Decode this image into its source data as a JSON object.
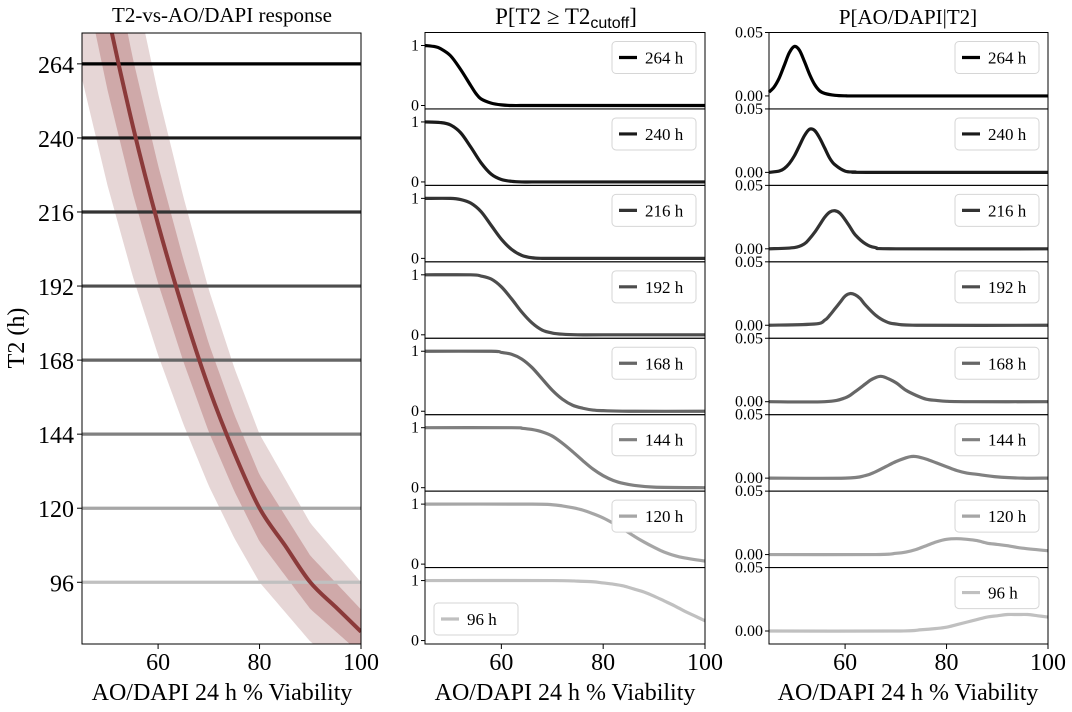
{
  "chart_data": [
    {
      "type": "line",
      "title": "T2-vs-AO/DAPI response",
      "xlabel": "AO/DAPI 24 h % Viability",
      "ylabel": "T2 (h)",
      "xlim": [
        45,
        100
      ],
      "ylim": [
        76,
        274
      ],
      "xticks": [
        "60",
        "80",
        "100"
      ],
      "yticks": [
        "96",
        "120",
        "144",
        "168",
        "192",
        "216",
        "240",
        "264"
      ],
      "curve": {
        "color": "#8b3a3a",
        "x": [
          45,
          50,
          55,
          60,
          65,
          70,
          75,
          80,
          85,
          90,
          95,
          100
        ],
        "y": [
          324,
          281,
          244,
          212,
          184,
          159,
          138,
          120,
          108,
          96,
          88,
          80
        ]
      },
      "band_inner_factor": 0.09,
      "band_outer_factor": 0.2,
      "hlines": [
        {
          "value": 264,
          "color": "#000000"
        },
        {
          "value": 240,
          "color": "#1a1a1a"
        },
        {
          "value": 216,
          "color": "#333333"
        },
        {
          "value": 192,
          "color": "#4d4d4d"
        },
        {
          "value": 168,
          "color": "#666666"
        },
        {
          "value": 144,
          "color": "#808080"
        },
        {
          "value": 120,
          "color": "#a6a6a6"
        },
        {
          "value": 96,
          "color": "#c0c0c0"
        }
      ],
      "grid": false
    },
    {
      "type": "line",
      "title_main": "P[T2 ≥ T2",
      "title_sub": "cutoff",
      "title_end": "]",
      "xlabel": "AO/DAPI 24 h % Viability",
      "xlim": [
        45,
        100
      ],
      "ylim": [
        0,
        1
      ],
      "xticks": [
        "60",
        "80",
        "100"
      ],
      "yticks": [
        "0",
        "1"
      ],
      "legend_position": "top-right",
      "series": [
        {
          "name": "264 h",
          "color": "#000000",
          "x": [
            45,
            47,
            48,
            50,
            52,
            54,
            55,
            56,
            58,
            60,
            62,
            65,
            70,
            100
          ],
          "y": [
            1.0,
            0.98,
            0.95,
            0.83,
            0.6,
            0.33,
            0.2,
            0.11,
            0.04,
            0.01,
            0.0,
            0.0,
            0.0,
            0.0
          ]
        },
        {
          "name": "240 h",
          "color": "#1a1a1a",
          "x": [
            45,
            48,
            50,
            52,
            54,
            56,
            58,
            60,
            62,
            64,
            66,
            70,
            100
          ],
          "y": [
            1.0,
            0.99,
            0.95,
            0.82,
            0.58,
            0.32,
            0.13,
            0.04,
            0.01,
            0.0,
            0.0,
            0.0,
            0.0
          ]
        },
        {
          "name": "216 h",
          "color": "#333333",
          "x": [
            45,
            50,
            52,
            54,
            56,
            58,
            60,
            62,
            64,
            66,
            68,
            70,
            75,
            100
          ],
          "y": [
            1.0,
            1.0,
            0.98,
            0.92,
            0.78,
            0.55,
            0.32,
            0.15,
            0.05,
            0.01,
            0.0,
            0.0,
            0.0,
            0.0
          ]
        },
        {
          "name": "192 h",
          "color": "#4d4d4d",
          "x": [
            45,
            54,
            56,
            58,
            60,
            62,
            64,
            66,
            68,
            70,
            72,
            75,
            80,
            100
          ],
          "y": [
            1.0,
            1.0,
            0.98,
            0.93,
            0.8,
            0.6,
            0.38,
            0.2,
            0.08,
            0.03,
            0.01,
            0.0,
            0.0,
            0.0
          ]
        },
        {
          "name": "168 h",
          "color": "#666666",
          "x": [
            45,
            58,
            60,
            62,
            64,
            66,
            68,
            70,
            72,
            74,
            76,
            78,
            80,
            85,
            100
          ],
          "y": [
            1.0,
            1.0,
            0.98,
            0.95,
            0.87,
            0.73,
            0.54,
            0.35,
            0.2,
            0.1,
            0.05,
            0.02,
            0.01,
            0.0,
            0.0
          ]
        },
        {
          "name": "144 h",
          "color": "#808080",
          "x": [
            45,
            62,
            64,
            66,
            68,
            70,
            72,
            74,
            76,
            78,
            80,
            82,
            84,
            86,
            90,
            100
          ],
          "y": [
            1.0,
            1.0,
            0.99,
            0.97,
            0.93,
            0.86,
            0.74,
            0.6,
            0.45,
            0.31,
            0.2,
            0.12,
            0.07,
            0.04,
            0.01,
            0.0
          ]
        },
        {
          "name": "120 h",
          "color": "#a6a6a6",
          "x": [
            45,
            66,
            70,
            72,
            74,
            76,
            78,
            80,
            82,
            84,
            86,
            88,
            90,
            92,
            95,
            100
          ],
          "y": [
            1.0,
            1.0,
            0.99,
            0.97,
            0.94,
            0.9,
            0.84,
            0.77,
            0.68,
            0.58,
            0.47,
            0.37,
            0.28,
            0.2,
            0.12,
            0.05
          ]
        },
        {
          "name": "96 h",
          "color": "#c0c0c0",
          "x": [
            45,
            70,
            75,
            78,
            80,
            82,
            84,
            86,
            88,
            90,
            92,
            94,
            96,
            98,
            100
          ],
          "y": [
            1.0,
            1.0,
            0.99,
            0.98,
            0.96,
            0.94,
            0.91,
            0.86,
            0.81,
            0.74,
            0.66,
            0.58,
            0.49,
            0.41,
            0.33
          ]
        }
      ]
    },
    {
      "type": "line",
      "title": "P[AO/DAPI|T2]",
      "xlabel": "AO/DAPI 24 h % Viability",
      "xlim": [
        45,
        100
      ],
      "ylim": [
        0,
        0.05
      ],
      "xticks": [
        "60",
        "80",
        "100"
      ],
      "yticks": [
        "0.00",
        "0.05"
      ],
      "legend_position": "top-right",
      "series": [
        {
          "name": "264 h",
          "color": "#000000",
          "x": [
            45,
            46,
            47,
            48,
            49,
            50,
            51,
            52,
            53,
            54,
            55,
            56,
            58,
            60,
            65,
            100
          ],
          "y": [
            0.003,
            0.007,
            0.014,
            0.024,
            0.034,
            0.039,
            0.036,
            0.027,
            0.017,
            0.009,
            0.004,
            0.002,
            0.0005,
            0.0001,
            0.0,
            0.0
          ]
        },
        {
          "name": "240 h",
          "color": "#1a1a1a",
          "x": [
            45,
            47,
            48,
            49,
            50,
            51,
            52,
            53,
            54,
            55,
            56,
            57,
            58,
            60,
            62,
            65,
            100
          ],
          "y": [
            0.0,
            0.001,
            0.003,
            0.007,
            0.013,
            0.021,
            0.029,
            0.034,
            0.033,
            0.027,
            0.019,
            0.011,
            0.006,
            0.001,
            0.0003,
            0.0,
            0.0
          ]
        },
        {
          "name": "216 h",
          "color": "#333333",
          "x": [
            45,
            50,
            52,
            53,
            54,
            55,
            56,
            57,
            58,
            59,
            60,
            61,
            62,
            64,
            66,
            70,
            100
          ],
          "y": [
            0.0,
            0.001,
            0.004,
            0.008,
            0.013,
            0.019,
            0.025,
            0.029,
            0.03,
            0.028,
            0.023,
            0.017,
            0.011,
            0.004,
            0.001,
            0.0,
            0.0
          ]
        },
        {
          "name": "192 h",
          "color": "#4d4d4d",
          "x": [
            45,
            54,
            56,
            57,
            58,
            59,
            60,
            61,
            62,
            63,
            64,
            66,
            68,
            70,
            75,
            100
          ],
          "y": [
            0.0,
            0.001,
            0.004,
            0.008,
            0.013,
            0.018,
            0.023,
            0.025,
            0.024,
            0.021,
            0.016,
            0.008,
            0.003,
            0.001,
            0.0,
            0.0
          ]
        },
        {
          "name": "168 h",
          "color": "#666666",
          "x": [
            45,
            56,
            60,
            62,
            64,
            65,
            66,
            67,
            68,
            70,
            72,
            74,
            76,
            78,
            80,
            85,
            100
          ],
          "y": [
            0.0,
            0.0,
            0.003,
            0.008,
            0.014,
            0.017,
            0.019,
            0.02,
            0.019,
            0.015,
            0.009,
            0.005,
            0.002,
            0.001,
            0.0003,
            0.0,
            0.0
          ]
        },
        {
          "name": "144 h",
          "color": "#808080",
          "x": [
            45,
            60,
            64,
            66,
            68,
            70,
            72,
            73,
            74,
            76,
            78,
            80,
            82,
            84,
            86,
            90,
            95,
            100
          ],
          "y": [
            0.0,
            0.0,
            0.002,
            0.005,
            0.009,
            0.013,
            0.016,
            0.017,
            0.017,
            0.015,
            0.012,
            0.009,
            0.006,
            0.004,
            0.003,
            0.001,
            0.0,
            0.0
          ]
        },
        {
          "name": "120 h",
          "color": "#a6a6a6",
          "x": [
            45,
            66,
            70,
            72,
            74,
            76,
            78,
            80,
            82,
            84,
            86,
            88,
            90,
            92,
            95,
            100
          ],
          "y": [
            0.0,
            0.0,
            0.001,
            0.002,
            0.004,
            0.007,
            0.01,
            0.012,
            0.0125,
            0.012,
            0.011,
            0.009,
            0.008,
            0.007,
            0.005,
            0.003
          ]
        },
        {
          "name": "96 h",
          "color": "#c0c0c0",
          "x": [
            45,
            70,
            75,
            78,
            80,
            82,
            84,
            86,
            88,
            90,
            92,
            94,
            96,
            98,
            100
          ],
          "y": [
            0.0,
            0.0,
            0.001,
            0.002,
            0.003,
            0.005,
            0.007,
            0.009,
            0.011,
            0.012,
            0.013,
            0.013,
            0.013,
            0.012,
            0.011
          ]
        }
      ]
    }
  ]
}
